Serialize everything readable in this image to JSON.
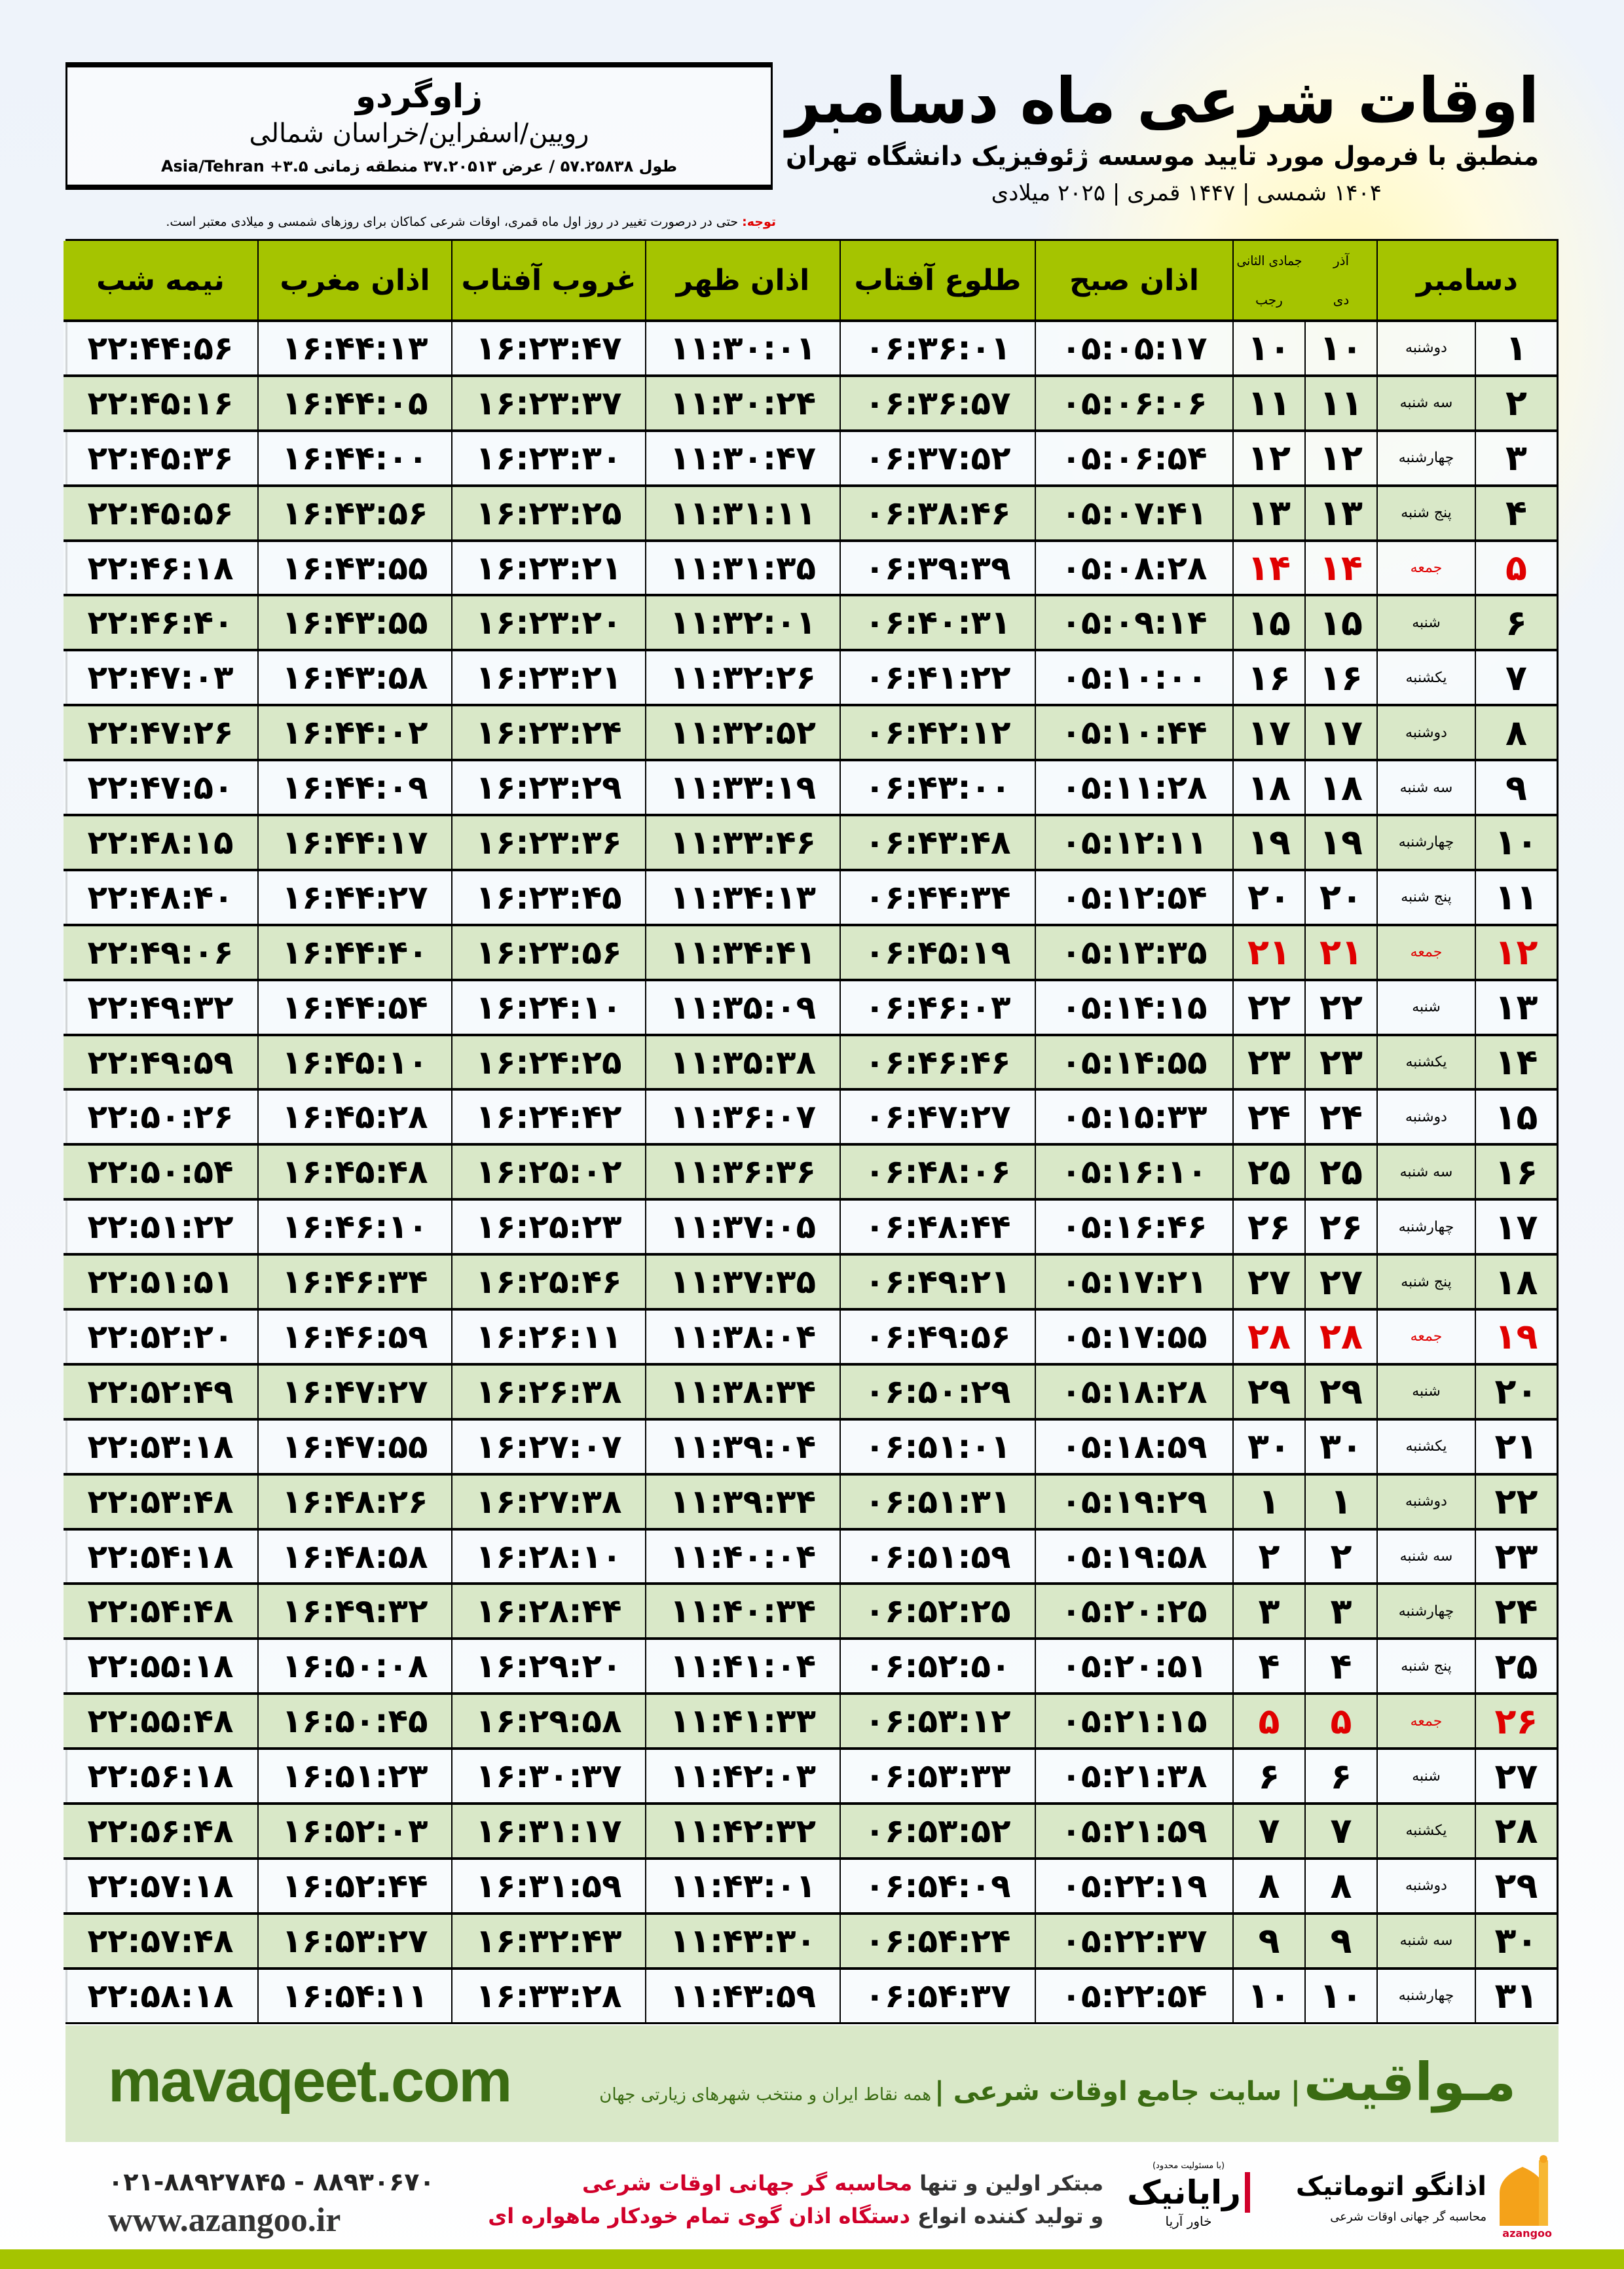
{
  "location": {
    "city": "زاوگردو",
    "region": "رویین/اسفراین/خراسان شمالی",
    "coords": "طول ۵۷.۲۵۸۳۸ / عرض ۳۷.۲۰۵۱۳ منطقه زمانی Asia/Tehran +۳.۵"
  },
  "title": {
    "main": "اوقات شرعی ماه دسامبر",
    "subtitle": "منطبق با فرمول مورد تایید موسسه ژئوفیزیک دانشگاه تهران",
    "years": "۱۴۰۴ شمسی | ۱۴۴۷ قمری | ۲۰۲۵ میلادی"
  },
  "note": {
    "label": "توجه:",
    "text": " حتی در درصورت تغییر در روز اول ماه قمری، اوقات شرعی کماکان برای روزهای شمسی و میلادی معتبر است."
  },
  "table": {
    "headers": {
      "month": "دسامبر",
      "azar": "آذر",
      "jumada": "جمادی الثانی",
      "dey": "دی",
      "rajab": "رجب",
      "fajr": "اذان صبح",
      "sunrise": "طلوع آفتاب",
      "dhuhr": "اذان ظهر",
      "sunset": "غروب آفتاب",
      "maghrib": "اذان مغرب",
      "midnight": "نیمه شب"
    },
    "friday_color": "#e00000",
    "header_color": "#a5c400",
    "rows": [
      {
        "day": "۱",
        "weekday": "دوشنبه",
        "shamsi": "۱۰",
        "qamari": "۱۰",
        "fajr": "۰۵:۰۵:۱۷",
        "sunrise": "۰۶:۳۶:۰۱",
        "dhuhr": "۱۱:۳۰:۰۱",
        "sunset": "۱۶:۲۳:۴۷",
        "maghrib": "۱۶:۴۴:۱۳",
        "midnight": "۲۲:۴۴:۵۶",
        "friday": false
      },
      {
        "day": "۲",
        "weekday": "سه شنبه",
        "shamsi": "۱۱",
        "qamari": "۱۱",
        "fajr": "۰۵:۰۶:۰۶",
        "sunrise": "۰۶:۳۶:۵۷",
        "dhuhr": "۱۱:۳۰:۲۴",
        "sunset": "۱۶:۲۳:۳۷",
        "maghrib": "۱۶:۴۴:۰۵",
        "midnight": "۲۲:۴۵:۱۶",
        "friday": false
      },
      {
        "day": "۳",
        "weekday": "چهارشنبه",
        "shamsi": "۱۲",
        "qamari": "۱۲",
        "fajr": "۰۵:۰۶:۵۴",
        "sunrise": "۰۶:۳۷:۵۲",
        "dhuhr": "۱۱:۳۰:۴۷",
        "sunset": "۱۶:۲۳:۳۰",
        "maghrib": "۱۶:۴۴:۰۰",
        "midnight": "۲۲:۴۵:۳۶",
        "friday": false
      },
      {
        "day": "۴",
        "weekday": "پنج شنبه",
        "shamsi": "۱۳",
        "qamari": "۱۳",
        "fajr": "۰۵:۰۷:۴۱",
        "sunrise": "۰۶:۳۸:۴۶",
        "dhuhr": "۱۱:۳۱:۱۱",
        "sunset": "۱۶:۲۳:۲۵",
        "maghrib": "۱۶:۴۳:۵۶",
        "midnight": "۲۲:۴۵:۵۶",
        "friday": false
      },
      {
        "day": "۵",
        "weekday": "جمعه",
        "shamsi": "۱۴",
        "qamari": "۱۴",
        "fajr": "۰۵:۰۸:۲۸",
        "sunrise": "۰۶:۳۹:۳۹",
        "dhuhr": "۱۱:۳۱:۳۵",
        "sunset": "۱۶:۲۳:۲۱",
        "maghrib": "۱۶:۴۳:۵۵",
        "midnight": "۲۲:۴۶:۱۸",
        "friday": true
      },
      {
        "day": "۶",
        "weekday": "شنبه",
        "shamsi": "۱۵",
        "qamari": "۱۵",
        "fajr": "۰۵:۰۹:۱۴",
        "sunrise": "۰۶:۴۰:۳۱",
        "dhuhr": "۱۱:۳۲:۰۱",
        "sunset": "۱۶:۲۳:۲۰",
        "maghrib": "۱۶:۴۳:۵۵",
        "midnight": "۲۲:۴۶:۴۰",
        "friday": false
      },
      {
        "day": "۷",
        "weekday": "یکشنبه",
        "shamsi": "۱۶",
        "qamari": "۱۶",
        "fajr": "۰۵:۱۰:۰۰",
        "sunrise": "۰۶:۴۱:۲۲",
        "dhuhr": "۱۱:۳۲:۲۶",
        "sunset": "۱۶:۲۳:۲۱",
        "maghrib": "۱۶:۴۳:۵۸",
        "midnight": "۲۲:۴۷:۰۳",
        "friday": false
      },
      {
        "day": "۸",
        "weekday": "دوشنبه",
        "shamsi": "۱۷",
        "qamari": "۱۷",
        "fajr": "۰۵:۱۰:۴۴",
        "sunrise": "۰۶:۴۲:۱۲",
        "dhuhr": "۱۱:۳۲:۵۲",
        "sunset": "۱۶:۲۳:۲۴",
        "maghrib": "۱۶:۴۴:۰۲",
        "midnight": "۲۲:۴۷:۲۶",
        "friday": false
      },
      {
        "day": "۹",
        "weekday": "سه شنبه",
        "shamsi": "۱۸",
        "qamari": "۱۸",
        "fajr": "۰۵:۱۱:۲۸",
        "sunrise": "۰۶:۴۳:۰۰",
        "dhuhr": "۱۱:۳۳:۱۹",
        "sunset": "۱۶:۲۳:۲۹",
        "maghrib": "۱۶:۴۴:۰۹",
        "midnight": "۲۲:۴۷:۵۰",
        "friday": false
      },
      {
        "day": "۱۰",
        "weekday": "چهارشنبه",
        "shamsi": "۱۹",
        "qamari": "۱۹",
        "fajr": "۰۵:۱۲:۱۱",
        "sunrise": "۰۶:۴۳:۴۸",
        "dhuhr": "۱۱:۳۳:۴۶",
        "sunset": "۱۶:۲۳:۳۶",
        "maghrib": "۱۶:۴۴:۱۷",
        "midnight": "۲۲:۴۸:۱۵",
        "friday": false
      },
      {
        "day": "۱۱",
        "weekday": "پنج شنبه",
        "shamsi": "۲۰",
        "qamari": "۲۰",
        "fajr": "۰۵:۱۲:۵۴",
        "sunrise": "۰۶:۴۴:۳۴",
        "dhuhr": "۱۱:۳۴:۱۳",
        "sunset": "۱۶:۲۳:۴۵",
        "maghrib": "۱۶:۴۴:۲۷",
        "midnight": "۲۲:۴۸:۴۰",
        "friday": false
      },
      {
        "day": "۱۲",
        "weekday": "جمعه",
        "shamsi": "۲۱",
        "qamari": "۲۱",
        "fajr": "۰۵:۱۳:۳۵",
        "sunrise": "۰۶:۴۵:۱۹",
        "dhuhr": "۱۱:۳۴:۴۱",
        "sunset": "۱۶:۲۳:۵۶",
        "maghrib": "۱۶:۴۴:۴۰",
        "midnight": "۲۲:۴۹:۰۶",
        "friday": true
      },
      {
        "day": "۱۳",
        "weekday": "شنبه",
        "shamsi": "۲۲",
        "qamari": "۲۲",
        "fajr": "۰۵:۱۴:۱۵",
        "sunrise": "۰۶:۴۶:۰۳",
        "dhuhr": "۱۱:۳۵:۰۹",
        "sunset": "۱۶:۲۴:۱۰",
        "maghrib": "۱۶:۴۴:۵۴",
        "midnight": "۲۲:۴۹:۳۲",
        "friday": false
      },
      {
        "day": "۱۴",
        "weekday": "یکشنبه",
        "shamsi": "۲۳",
        "qamari": "۲۳",
        "fajr": "۰۵:۱۴:۵۵",
        "sunrise": "۰۶:۴۶:۴۶",
        "dhuhr": "۱۱:۳۵:۳۸",
        "sunset": "۱۶:۲۴:۲۵",
        "maghrib": "۱۶:۴۵:۱۰",
        "midnight": "۲۲:۴۹:۵۹",
        "friday": false
      },
      {
        "day": "۱۵",
        "weekday": "دوشنبه",
        "shamsi": "۲۴",
        "qamari": "۲۴",
        "fajr": "۰۵:۱۵:۳۳",
        "sunrise": "۰۶:۴۷:۲۷",
        "dhuhr": "۱۱:۳۶:۰۷",
        "sunset": "۱۶:۲۴:۴۲",
        "maghrib": "۱۶:۴۵:۲۸",
        "midnight": "۲۲:۵۰:۲۶",
        "friday": false
      },
      {
        "day": "۱۶",
        "weekday": "سه شنبه",
        "shamsi": "۲۵",
        "qamari": "۲۵",
        "fajr": "۰۵:۱۶:۱۰",
        "sunrise": "۰۶:۴۸:۰۶",
        "dhuhr": "۱۱:۳۶:۳۶",
        "sunset": "۱۶:۲۵:۰۲",
        "maghrib": "۱۶:۴۵:۴۸",
        "midnight": "۲۲:۵۰:۵۴",
        "friday": false
      },
      {
        "day": "۱۷",
        "weekday": "چهارشنبه",
        "shamsi": "۲۶",
        "qamari": "۲۶",
        "fajr": "۰۵:۱۶:۴۶",
        "sunrise": "۰۶:۴۸:۴۴",
        "dhuhr": "۱۱:۳۷:۰۵",
        "sunset": "۱۶:۲۵:۲۳",
        "maghrib": "۱۶:۴۶:۱۰",
        "midnight": "۲۲:۵۱:۲۲",
        "friday": false
      },
      {
        "day": "۱۸",
        "weekday": "پنج شنبه",
        "shamsi": "۲۷",
        "qamari": "۲۷",
        "fajr": "۰۵:۱۷:۲۱",
        "sunrise": "۰۶:۴۹:۲۱",
        "dhuhr": "۱۱:۳۷:۳۵",
        "sunset": "۱۶:۲۵:۴۶",
        "maghrib": "۱۶:۴۶:۳۴",
        "midnight": "۲۲:۵۱:۵۱",
        "friday": false
      },
      {
        "day": "۱۹",
        "weekday": "جمعه",
        "shamsi": "۲۸",
        "qamari": "۲۸",
        "fajr": "۰۵:۱۷:۵۵",
        "sunrise": "۰۶:۴۹:۵۶",
        "dhuhr": "۱۱:۳۸:۰۴",
        "sunset": "۱۶:۲۶:۱۱",
        "maghrib": "۱۶:۴۶:۵۹",
        "midnight": "۲۲:۵۲:۲۰",
        "friday": true
      },
      {
        "day": "۲۰",
        "weekday": "شنبه",
        "shamsi": "۲۹",
        "qamari": "۲۹",
        "fajr": "۰۵:۱۸:۲۸",
        "sunrise": "۰۶:۵۰:۲۹",
        "dhuhr": "۱۱:۳۸:۳۴",
        "sunset": "۱۶:۲۶:۳۸",
        "maghrib": "۱۶:۴۷:۲۷",
        "midnight": "۲۲:۵۲:۴۹",
        "friday": false
      },
      {
        "day": "۲۱",
        "weekday": "یکشنبه",
        "shamsi": "۳۰",
        "qamari": "۳۰",
        "fajr": "۰۵:۱۸:۵۹",
        "sunrise": "۰۶:۵۱:۰۱",
        "dhuhr": "۱۱:۳۹:۰۴",
        "sunset": "۱۶:۲۷:۰۷",
        "maghrib": "۱۶:۴۷:۵۵",
        "midnight": "۲۲:۵۳:۱۸",
        "friday": false
      },
      {
        "day": "۲۲",
        "weekday": "دوشنبه",
        "shamsi": "۱",
        "qamari": "۱",
        "fajr": "۰۵:۱۹:۲۹",
        "sunrise": "۰۶:۵۱:۳۱",
        "dhuhr": "۱۱:۳۹:۳۴",
        "sunset": "۱۶:۲۷:۳۸",
        "maghrib": "۱۶:۴۸:۲۶",
        "midnight": "۲۲:۵۳:۴۸",
        "friday": false
      },
      {
        "day": "۲۳",
        "weekday": "سه شنبه",
        "shamsi": "۲",
        "qamari": "۲",
        "fajr": "۰۵:۱۹:۵۸",
        "sunrise": "۰۶:۵۱:۵۹",
        "dhuhr": "۱۱:۴۰:۰۴",
        "sunset": "۱۶:۲۸:۱۰",
        "maghrib": "۱۶:۴۸:۵۸",
        "midnight": "۲۲:۵۴:۱۸",
        "friday": false
      },
      {
        "day": "۲۴",
        "weekday": "چهارشنبه",
        "shamsi": "۳",
        "qamari": "۳",
        "fajr": "۰۵:۲۰:۲۵",
        "sunrise": "۰۶:۵۲:۲۵",
        "dhuhr": "۱۱:۴۰:۳۴",
        "sunset": "۱۶:۲۸:۴۴",
        "maghrib": "۱۶:۴۹:۳۲",
        "midnight": "۲۲:۵۴:۴۸",
        "friday": false
      },
      {
        "day": "۲۵",
        "weekday": "پنج شنبه",
        "shamsi": "۴",
        "qamari": "۴",
        "fajr": "۰۵:۲۰:۵۱",
        "sunrise": "۰۶:۵۲:۵۰",
        "dhuhr": "۱۱:۴۱:۰۴",
        "sunset": "۱۶:۲۹:۲۰",
        "maghrib": "۱۶:۵۰:۰۸",
        "midnight": "۲۲:۵۵:۱۸",
        "friday": false
      },
      {
        "day": "۲۶",
        "weekday": "جمعه",
        "shamsi": "۵",
        "qamari": "۵",
        "fajr": "۰۵:۲۱:۱۵",
        "sunrise": "۰۶:۵۳:۱۲",
        "dhuhr": "۱۱:۴۱:۳۳",
        "sunset": "۱۶:۲۹:۵۸",
        "maghrib": "۱۶:۵۰:۴۵",
        "midnight": "۲۲:۵۵:۴۸",
        "friday": true
      },
      {
        "day": "۲۷",
        "weekday": "شنبه",
        "shamsi": "۶",
        "qamari": "۶",
        "fajr": "۰۵:۲۱:۳۸",
        "sunrise": "۰۶:۵۳:۳۳",
        "dhuhr": "۱۱:۴۲:۰۳",
        "sunset": "۱۶:۳۰:۳۷",
        "maghrib": "۱۶:۵۱:۲۳",
        "midnight": "۲۲:۵۶:۱۸",
        "friday": false
      },
      {
        "day": "۲۸",
        "weekday": "یکشنبه",
        "shamsi": "۷",
        "qamari": "۷",
        "fajr": "۰۵:۲۱:۵۹",
        "sunrise": "۰۶:۵۳:۵۲",
        "dhuhr": "۱۱:۴۲:۳۲",
        "sunset": "۱۶:۳۱:۱۷",
        "maghrib": "۱۶:۵۲:۰۳",
        "midnight": "۲۲:۵۶:۴۸",
        "friday": false
      },
      {
        "day": "۲۹",
        "weekday": "دوشنبه",
        "shamsi": "۸",
        "qamari": "۸",
        "fajr": "۰۵:۲۲:۱۹",
        "sunrise": "۰۶:۵۴:۰۹",
        "dhuhr": "۱۱:۴۳:۰۱",
        "sunset": "۱۶:۳۱:۵۹",
        "maghrib": "۱۶:۵۲:۴۴",
        "midnight": "۲۲:۵۷:۱۸",
        "friday": false
      },
      {
        "day": "۳۰",
        "weekday": "سه شنبه",
        "shamsi": "۹",
        "qamari": "۹",
        "fajr": "۰۵:۲۲:۳۷",
        "sunrise": "۰۶:۵۴:۲۴",
        "dhuhr": "۱۱:۴۳:۳۰",
        "sunset": "۱۶:۳۲:۴۳",
        "maghrib": "۱۶:۵۳:۲۷",
        "midnight": "۲۲:۵۷:۴۸",
        "friday": false
      },
      {
        "day": "۳۱",
        "weekday": "چهارشنبه",
        "shamsi": "۱۰",
        "qamari": "۱۰",
        "fajr": "۰۵:۲۲:۵۴",
        "sunrise": "۰۶:۵۴:۳۷",
        "dhuhr": "۱۱:۴۳:۵۹",
        "sunset": "۱۶:۳۳:۲۸",
        "maghrib": "۱۶:۵۴:۱۱",
        "midnight": "۲۲:۵۸:۱۸",
        "friday": false
      }
    ]
  },
  "banner": {
    "site": "mavaqeet.com",
    "brand": "مـواقیت",
    "slogan": "| سایت جامع اوقات شرعی |",
    "desc": "همه نقاط ایران و منتخب شهرهای زیارتی جهان"
  },
  "footer": {
    "phone": "۰۲۱-۸۸۹۲۷۸۴۵ - ۸۸۹۳۰۶۷۰",
    "web": "www.azangoo.ir",
    "line1_a": "مبتکر اولین و تنها ",
    "line1_b": "محاسبه گر جهانی اوقات شرعی",
    "line2_a": "و تولید کننده انواع ",
    "line2_b": "دستگاه اذان گوی تمام خودکار ماهواره ای",
    "rayanik_note": "(با مسئولیت محدود)",
    "rayanik": "رایانیک",
    "rayanik_sub": "خاور آریا",
    "azangoo_name": "اذانگو اتوماتیک",
    "azangoo_sub": "محاسبه گر جهانی اوقات شرعی",
    "azangoo_latin": "azangoo"
  }
}
